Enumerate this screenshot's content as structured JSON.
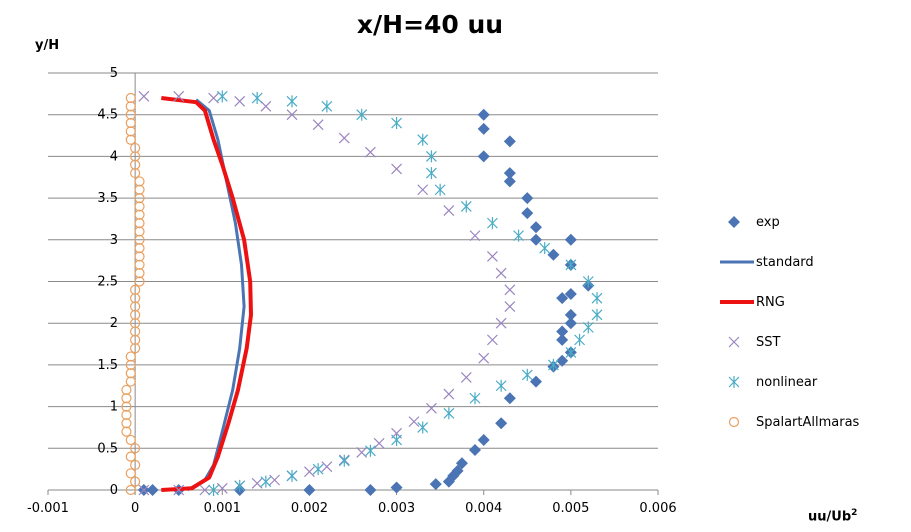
{
  "chart_data": {
    "type": "scatter",
    "title": "x/H=40  uu",
    "ylabel": "y/H",
    "xlabel": "uu/Ub",
    "xlabel_sup": "2",
    "xlim": [
      -0.001,
      0.006
    ],
    "ylim": [
      0,
      5
    ],
    "x_ticks": [
      "-0.001",
      "0",
      "0.001",
      "0.002",
      "0.003",
      "0.004",
      "0.005",
      "0.006"
    ],
    "y_ticks": [
      "0",
      "0.5",
      "1",
      "1.5",
      "2",
      "2.5",
      "3",
      "3.5",
      "4",
      "4.5",
      "5"
    ],
    "grid": "horizontal",
    "legend_position": "right",
    "series": [
      {
        "name": "exp",
        "marker": "diamond",
        "color": "#4a74b4",
        "points": [
          [
            0.0001,
            0.0
          ],
          [
            0.0002,
            0.0
          ],
          [
            0.0005,
            0.0
          ],
          [
            0.0012,
            0.0
          ],
          [
            0.002,
            0.0
          ],
          [
            0.0027,
            0.0
          ],
          [
            0.003,
            0.03
          ],
          [
            0.00345,
            0.07
          ],
          [
            0.0036,
            0.1
          ],
          [
            0.00365,
            0.17
          ],
          [
            0.0037,
            0.23
          ],
          [
            0.00375,
            0.32
          ],
          [
            0.0039,
            0.48
          ],
          [
            0.004,
            0.6
          ],
          [
            0.0042,
            0.8
          ],
          [
            0.0043,
            1.1
          ],
          [
            0.0046,
            1.3
          ],
          [
            0.0048,
            1.48
          ],
          [
            0.0049,
            1.55
          ],
          [
            0.005,
            1.65
          ],
          [
            0.0049,
            1.8
          ],
          [
            0.0049,
            1.9
          ],
          [
            0.005,
            2.0
          ],
          [
            0.005,
            2.1
          ],
          [
            0.0049,
            2.3
          ],
          [
            0.005,
            2.35
          ],
          [
            0.0052,
            2.45
          ],
          [
            0.005,
            2.7
          ],
          [
            0.0048,
            2.82
          ],
          [
            0.005,
            3.0
          ],
          [
            0.0046,
            3.0
          ],
          [
            0.0046,
            3.15
          ],
          [
            0.0045,
            3.32
          ],
          [
            0.0045,
            3.5
          ],
          [
            0.0043,
            3.7
          ],
          [
            0.0043,
            3.8
          ],
          [
            0.004,
            4.0
          ],
          [
            0.0043,
            4.18
          ],
          [
            0.004,
            4.33
          ],
          [
            0.004,
            4.5
          ]
        ]
      },
      {
        "name": "standard",
        "marker": "line",
        "color": "#4a74b4",
        "points": [
          [
            0.0006,
            0.0
          ],
          [
            0.0008,
            0.12
          ],
          [
            0.0009,
            0.3
          ],
          [
            0.001,
            0.7
          ],
          [
            0.00112,
            1.2
          ],
          [
            0.0012,
            1.7
          ],
          [
            0.00125,
            2.2
          ],
          [
            0.00122,
            2.7
          ],
          [
            0.00115,
            3.2
          ],
          [
            0.00105,
            3.7
          ],
          [
            0.00095,
            4.2
          ],
          [
            0.00085,
            4.55
          ],
          [
            0.0007,
            4.68
          ]
        ]
      },
      {
        "name": "RNG",
        "marker": "line",
        "color": "#ee1111",
        "points": [
          [
            0.0003,
            0.0
          ],
          [
            0.00065,
            0.02
          ],
          [
            0.00085,
            0.15
          ],
          [
            0.00095,
            0.4
          ],
          [
            0.00107,
            0.8
          ],
          [
            0.00118,
            1.2
          ],
          [
            0.00128,
            1.7
          ],
          [
            0.00133,
            2.1
          ],
          [
            0.00132,
            2.5
          ],
          [
            0.00125,
            3.0
          ],
          [
            0.00112,
            3.5
          ],
          [
            0.001,
            3.9
          ],
          [
            0.0009,
            4.2
          ],
          [
            0.0008,
            4.55
          ],
          [
            0.0007,
            4.65
          ],
          [
            0.0003,
            4.7
          ]
        ]
      },
      {
        "name": "SST",
        "marker": "x",
        "color": "#9b85c0",
        "points": [
          [
            0.0001,
            0.0
          ],
          [
            0.0005,
            0.0
          ],
          [
            0.0008,
            0.0
          ],
          [
            0.001,
            0.02
          ],
          [
            0.0012,
            0.05
          ],
          [
            0.0014,
            0.08
          ],
          [
            0.0016,
            0.12
          ],
          [
            0.0018,
            0.17
          ],
          [
            0.002,
            0.22
          ],
          [
            0.0022,
            0.28
          ],
          [
            0.0024,
            0.36
          ],
          [
            0.0026,
            0.45
          ],
          [
            0.0028,
            0.56
          ],
          [
            0.003,
            0.68
          ],
          [
            0.0032,
            0.82
          ],
          [
            0.0034,
            0.98
          ],
          [
            0.0036,
            1.15
          ],
          [
            0.0038,
            1.35
          ],
          [
            0.004,
            1.58
          ],
          [
            0.0041,
            1.8
          ],
          [
            0.0042,
            2.0
          ],
          [
            0.0043,
            2.2
          ],
          [
            0.0043,
            2.4
          ],
          [
            0.0042,
            2.6
          ],
          [
            0.0041,
            2.8
          ],
          [
            0.0039,
            3.05
          ],
          [
            0.0036,
            3.35
          ],
          [
            0.0033,
            3.6
          ],
          [
            0.003,
            3.85
          ],
          [
            0.0027,
            4.05
          ],
          [
            0.0024,
            4.22
          ],
          [
            0.0021,
            4.38
          ],
          [
            0.0018,
            4.5
          ],
          [
            0.0015,
            4.6
          ],
          [
            0.0012,
            4.66
          ],
          [
            0.0009,
            4.7
          ],
          [
            0.0005,
            4.72
          ],
          [
            0.0001,
            4.72
          ]
        ]
      },
      {
        "name": "nonlinear",
        "marker": "asterisk",
        "color": "#4aacc6",
        "points": [
          [
            0.0009,
            0.0
          ],
          [
            0.0012,
            0.05
          ],
          [
            0.0015,
            0.1
          ],
          [
            0.0018,
            0.17
          ],
          [
            0.0021,
            0.25
          ],
          [
            0.0024,
            0.35
          ],
          [
            0.0027,
            0.47
          ],
          [
            0.003,
            0.6
          ],
          [
            0.0033,
            0.75
          ],
          [
            0.0036,
            0.92
          ],
          [
            0.0039,
            1.1
          ],
          [
            0.0042,
            1.25
          ],
          [
            0.0045,
            1.38
          ],
          [
            0.0048,
            1.5
          ],
          [
            0.005,
            1.65
          ],
          [
            0.0051,
            1.8
          ],
          [
            0.0052,
            1.95
          ],
          [
            0.0053,
            2.1
          ],
          [
            0.0053,
            2.3
          ],
          [
            0.0052,
            2.5
          ],
          [
            0.005,
            2.7
          ],
          [
            0.0047,
            2.9
          ],
          [
            0.0044,
            3.05
          ],
          [
            0.0041,
            3.2
          ],
          [
            0.0038,
            3.4
          ],
          [
            0.0035,
            3.6
          ],
          [
            0.0034,
            3.8
          ],
          [
            0.0034,
            4.0
          ],
          [
            0.0033,
            4.2
          ],
          [
            0.003,
            4.4
          ],
          [
            0.0026,
            4.5
          ],
          [
            0.0022,
            4.6
          ],
          [
            0.0018,
            4.66
          ],
          [
            0.0014,
            4.7
          ],
          [
            0.001,
            4.72
          ]
        ]
      },
      {
        "name": "SpalartAllmaras",
        "marker": "circle",
        "color": "#e8a060",
        "points": [
          [
            -5e-05,
            0.0
          ],
          [
            0.0,
            0.1
          ],
          [
            -5e-05,
            0.2
          ],
          [
            0.0,
            0.3
          ],
          [
            -5e-05,
            0.4
          ],
          [
            0.0,
            0.5
          ],
          [
            -5e-05,
            0.6
          ],
          [
            -0.0001,
            0.7
          ],
          [
            -0.0001,
            0.8
          ],
          [
            -0.0001,
            0.9
          ],
          [
            -0.0001,
            1.0
          ],
          [
            -0.0001,
            1.1
          ],
          [
            -0.0001,
            1.2
          ],
          [
            -5e-05,
            1.3
          ],
          [
            -5e-05,
            1.4
          ],
          [
            -5e-05,
            1.5
          ],
          [
            -5e-05,
            1.6
          ],
          [
            0.0,
            1.7
          ],
          [
            0.0,
            1.8
          ],
          [
            0.0,
            1.9
          ],
          [
            0.0,
            2.0
          ],
          [
            0.0,
            2.1
          ],
          [
            0.0,
            2.2
          ],
          [
            0.0,
            2.3
          ],
          [
            0.0,
            2.4
          ],
          [
            5e-05,
            2.5
          ],
          [
            5e-05,
            2.6
          ],
          [
            5e-05,
            2.7
          ],
          [
            5e-05,
            2.8
          ],
          [
            5e-05,
            2.9
          ],
          [
            5e-05,
            3.0
          ],
          [
            5e-05,
            3.1
          ],
          [
            5e-05,
            3.2
          ],
          [
            5e-05,
            3.3
          ],
          [
            5e-05,
            3.4
          ],
          [
            5e-05,
            3.5
          ],
          [
            5e-05,
            3.6
          ],
          [
            5e-05,
            3.7
          ],
          [
            0.0,
            3.8
          ],
          [
            0.0,
            3.9
          ],
          [
            0.0,
            4.0
          ],
          [
            0.0,
            4.1
          ],
          [
            -5e-05,
            4.2
          ],
          [
            -5e-05,
            4.3
          ],
          [
            -5e-05,
            4.4
          ],
          [
            -5e-05,
            4.5
          ],
          [
            -5e-05,
            4.6
          ],
          [
            -5e-05,
            4.7
          ]
        ]
      }
    ]
  }
}
